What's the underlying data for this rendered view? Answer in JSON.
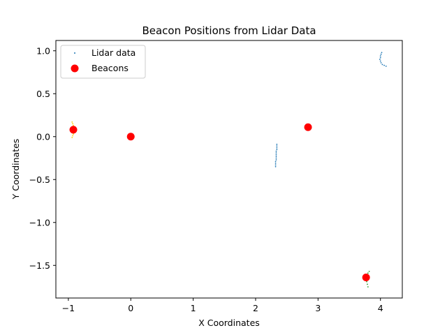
{
  "chart_data": {
    "type": "scatter",
    "title": "Beacon Positions from Lidar Data",
    "xlabel": "X Coordinates",
    "ylabel": "Y Coordinates",
    "xlim": [
      -1.2,
      4.35
    ],
    "ylim": [
      -1.88,
      1.12
    ],
    "xticks": [
      -1,
      0,
      1,
      2,
      3,
      4
    ],
    "yticks": [
      -1.5,
      -1.0,
      -0.5,
      0.0,
      0.5,
      1.0
    ],
    "xtick_labels": [
      "−1",
      "0",
      "1",
      "2",
      "3",
      "4"
    ],
    "ytick_labels": [
      "−1.5",
      "−1.0",
      "−0.5",
      "0.0",
      "0.5",
      "1.0"
    ],
    "grid": false,
    "legend": {
      "placement": "upper-left",
      "entries": [
        {
          "label": "Lidar data",
          "marker": "small-dot",
          "color": "#1f77b4"
        },
        {
          "label": "Beacons",
          "marker": "large-dot",
          "color": "#ff0000"
        }
      ]
    },
    "series": [
      {
        "name": "Lidar data",
        "color": "#1f77b4",
        "points": [
          [
            4.02,
            0.98
          ],
          [
            4.01,
            0.96
          ],
          [
            4.0,
            0.94
          ],
          [
            4.0,
            0.92
          ],
          [
            3.99,
            0.9
          ],
          [
            4.0,
            0.88
          ],
          [
            4.01,
            0.86
          ],
          [
            4.03,
            0.84
          ],
          [
            4.06,
            0.83
          ],
          [
            4.09,
            0.82
          ],
          [
            2.34,
            -0.09
          ],
          [
            2.34,
            -0.11
          ],
          [
            2.34,
            -0.13
          ],
          [
            2.34,
            -0.15
          ],
          [
            2.33,
            -0.17
          ],
          [
            2.33,
            -0.19
          ],
          [
            2.33,
            -0.21
          ],
          [
            2.33,
            -0.23
          ],
          [
            2.33,
            -0.25
          ],
          [
            2.33,
            -0.27
          ],
          [
            2.32,
            -0.29
          ],
          [
            2.32,
            -0.31
          ],
          [
            2.32,
            -0.33
          ],
          [
            2.32,
            -0.35
          ]
        ]
      },
      {
        "color": "#ffcc00",
        "points": [
          [
            -0.94,
            0.17
          ],
          [
            -0.93,
            0.15
          ],
          [
            -0.92,
            0.13
          ],
          [
            -0.91,
            0.11
          ],
          [
            -0.9,
            0.09
          ],
          [
            -0.9,
            0.07
          ],
          [
            -0.91,
            0.05
          ],
          [
            -0.92,
            0.03
          ],
          [
            -0.93,
            0.01
          ],
          [
            -0.94,
            -0.01
          ]
        ]
      },
      {
        "color": "#2ca02c",
        "points": [
          [
            3.82,
            -1.57
          ],
          [
            3.8,
            -1.59
          ],
          [
            3.79,
            -1.61
          ],
          [
            3.78,
            -1.63
          ],
          [
            3.78,
            -1.66
          ],
          [
            3.78,
            -1.69
          ],
          [
            3.79,
            -1.72
          ],
          [
            3.8,
            -1.75
          ]
        ]
      },
      {
        "name": "Beacons",
        "color": "#ff0000",
        "points": [
          [
            -0.92,
            0.08
          ],
          [
            0.0,
            0.0
          ],
          [
            2.84,
            0.11
          ],
          [
            3.77,
            -1.64
          ]
        ]
      }
    ]
  }
}
